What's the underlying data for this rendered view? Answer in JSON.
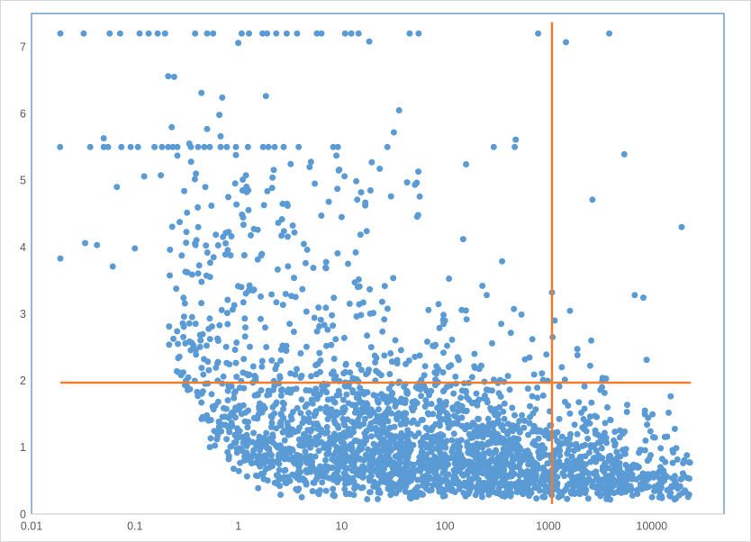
{
  "chart_data": {
    "type": "scatter",
    "title": "",
    "xlabel": "",
    "ylabel": "",
    "xscale": "log",
    "xlim": [
      0.01,
      50000
    ],
    "ylim": [
      0,
      7.5
    ],
    "xticks": [
      0.01,
      0.1,
      1,
      10,
      100,
      1000,
      10000
    ],
    "yticks": [
      0,
      1,
      2,
      3,
      4,
      5,
      6,
      7
    ],
    "grid": false,
    "legend": false,
    "marker": {
      "color": "#5B9BD5",
      "radius": 3.5
    },
    "axis_label_color": "#595959",
    "plot_border_color": "#4F87C5",
    "axis_line_color": "#D0CECE",
    "outer_border_color": "#D9D9D9",
    "reference_lines": [
      {
        "name": "horizontal-threshold",
        "axis": "y",
        "value": 1.97,
        "from": 0.019,
        "to": 23800,
        "color": "#ED7D31",
        "width": 2.5
      },
      {
        "name": "vertical-threshold",
        "axis": "x",
        "value": 1084,
        "from": 0.15,
        "to": 7.37,
        "color": "#ED7D31",
        "width": 2.5
      }
    ],
    "bands": [
      {
        "y": 7.2,
        "x": [
          0.019,
          0.032,
          0.057,
          0.072,
          0.111,
          0.136,
          0.166,
          0.196,
          0.383,
          0.5,
          0.571,
          1.08,
          1.27,
          1.72,
          1.9,
          2.33,
          2.94,
          3.71,
          5.77,
          6.38,
          10.8,
          12.4,
          14.6,
          45.5,
          55.6,
          796,
          3884
        ]
      },
      {
        "y": 5.5,
        "x": [
          0.0189,
          0.037,
          0.05,
          0.055,
          0.074,
          0.091,
          0.107,
          0.155,
          0.183,
          0.21,
          0.233,
          0.258,
          0.348,
          0.409,
          0.47,
          0.53,
          0.675,
          0.776,
          0.95,
          1.24,
          1.74,
          1.96,
          2.25,
          2.75,
          3.84,
          8.3,
          9.2,
          27.7,
          296,
          473
        ]
      }
    ],
    "outlier_points": [
      [
        1.0,
        7.06
      ],
      [
        18.5,
        7.08
      ],
      [
        1480,
        7.07
      ],
      [
        0.05,
        5.63
      ],
      [
        0.675,
        5.66
      ],
      [
        0.95,
        5.38
      ],
      [
        0.258,
        5.37
      ],
      [
        0.35,
        5.28
      ],
      [
        4.9,
        5.2
      ],
      [
        9.5,
        5.16
      ],
      [
        8.9,
        5.37
      ],
      [
        19.6,
        5.27
      ],
      [
        160,
        5.24
      ],
      [
        32,
        5.72
      ],
      [
        483,
        5.61
      ],
      [
        0.21,
        6.56
      ],
      [
        0.24,
        6.55
      ],
      [
        0.44,
        6.31
      ],
      [
        0.7,
        6.24
      ],
      [
        0.5,
        5.77
      ],
      [
        36,
        6.05
      ],
      [
        3,
        4.62
      ],
      [
        5.5,
        4.95
      ],
      [
        10,
        4.45
      ],
      [
        19,
        4.85
      ],
      [
        30,
        4.76
      ],
      [
        43,
        4.97
      ],
      [
        55,
        4.48
      ],
      [
        0.55,
        4.62
      ],
      [
        0.8,
        4.75
      ],
      [
        1.1,
        4.85
      ],
      [
        2667,
        4.71
      ],
      [
        5430,
        5.39
      ],
      [
        6855,
        3.28
      ],
      [
        19465,
        4.3
      ],
      [
        1084,
        3.32
      ],
      [
        150,
        4.12
      ],
      [
        230,
        3.42
      ],
      [
        350,
        2.85
      ],
      [
        700,
        2.62
      ],
      [
        1150,
        2.9
      ],
      [
        1350,
        2.2
      ],
      [
        2600,
        2.6
      ],
      [
        3300,
        1.9
      ],
      [
        0.019,
        3.83
      ],
      [
        0.033,
        4.06
      ],
      [
        0.043,
        4.03
      ],
      [
        0.1,
        3.98
      ],
      [
        0.061,
        3.71
      ],
      [
        0.067,
        4.9
      ],
      [
        0.123,
        5.06
      ],
      [
        0.3,
        4.84
      ],
      [
        0.39,
        5.1
      ],
      [
        0.48,
        4.9
      ]
    ],
    "generator": {
      "seed": 2024,
      "components": [
        {
          "name": "core",
          "type": "core",
          "count": 1825,
          "seed": 11,
          "u": {
            "min": -0.58,
            "max": 4.4
          },
          "scale": {
            "a": 0.85,
            "b": -0.11,
            "min": 0.3,
            "max": 0.92,
            "mult": 1.3
          },
          "floor": {
            "base": 0.17,
            "a": 0.5,
            "c": 1.3
          },
          "ceil": {
            "a": 5.8,
            "b": -0.62
          }
        },
        {
          "name": "right-tail",
          "type": "core",
          "count": 270,
          "seed": 22,
          "u": {
            "dist": "uniform",
            "min": 2.3,
            "max": 4.4
          },
          "scale": {
            "a": 0.8,
            "b": -0.11,
            "min": 0.28,
            "max": 0.9,
            "mult": 1.25
          },
          "floor": {
            "base": 0.17,
            "a": 0.5,
            "c": 1.3
          },
          "ceil": {
            "a": 5.8,
            "b": -0.62
          }
        },
        {
          "name": "mid",
          "type": "mid",
          "count": 430,
          "seed": 33,
          "u": {
            "mean": 0.55,
            "sd": 0.9,
            "min": -0.68,
            "max": 3.6
          },
          "y": {
            "offset": 0.35,
            "sd": 0.9,
            "max": 5.2
          },
          "floor": {
            "base": 0.17,
            "a": 0.5,
            "c": 1.3
          },
          "ceil": {
            "a": 5.6,
            "b": -0.55
          }
        },
        {
          "name": "upper-left",
          "type": "blob",
          "count": 95,
          "seed": 44,
          "u": {
            "mean": 0.05,
            "sd": 0.55,
            "min": -0.68,
            "max": 1.5
          },
          "y": {
            "mean": 3.85,
            "sd": 0.72,
            "min": 2.7,
            "max": 5.15
          }
        },
        {
          "name": "upper-band",
          "type": "high",
          "count": 20,
          "seed": 66,
          "u": {
            "min": 0.0,
            "max": 1.85
          },
          "y": {
            "min": 4.15,
            "max": 5.28
          }
        },
        {
          "name": "high",
          "type": "high",
          "count": 6,
          "seed": 55,
          "u": {
            "min": -0.9,
            "max": 0.3
          },
          "y": {
            "min": 4.6,
            "max": 6.3
          }
        }
      ]
    }
  }
}
